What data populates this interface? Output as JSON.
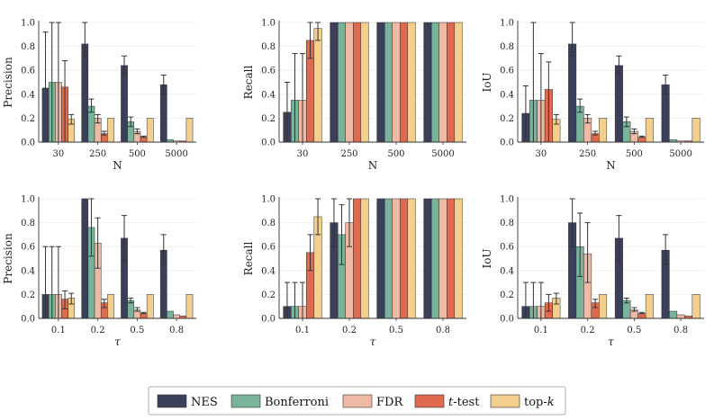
{
  "colors": {
    "NES": "#3c3f5a",
    "Bonferroni": "#78b39a",
    "FDR": "#f0b9a4",
    "t-test": "#df6a4e",
    "top-k": "#f2cf8c",
    "grid": "#eeeeee",
    "axis": "#333333",
    "errorbar": "#333333"
  },
  "legend": {
    "items": [
      {
        "name": "NES",
        "label": "NES"
      },
      {
        "name": "Bonferroni",
        "label": "Bonferroni"
      },
      {
        "name": "FDR",
        "label": "FDR"
      },
      {
        "name": "t-test",
        "label": "t-test",
        "italic_part": "t",
        "rest": "-test"
      },
      {
        "name": "top-k",
        "label": "top-k",
        "prefix": "top-",
        "italic_part": "k"
      }
    ]
  },
  "chart_data": [
    {
      "type": "bar",
      "id": "precision-N",
      "ylabel": "Precision",
      "xlabel": "N",
      "categories": [
        "30",
        "250",
        "500",
        "5000"
      ],
      "ylim": [
        0,
        1
      ],
      "yticks": [
        "0.0",
        "0.2",
        "0.4",
        "0.6",
        "0.8",
        "1.0"
      ],
      "series": [
        {
          "name": "NES",
          "values": [
            0.45,
            0.82,
            0.64,
            0.48
          ],
          "err_low": [
            0.45,
            0.72,
            0.57,
            0.4
          ],
          "err_high": [
            0.92,
            1.0,
            0.72,
            0.56
          ]
        },
        {
          "name": "Bonferroni",
          "values": [
            0.5,
            0.3,
            0.17,
            0.02
          ],
          "err_low": [
            0.0,
            0.25,
            0.13,
            0.02
          ],
          "err_high": [
            1.0,
            0.36,
            0.21,
            0.02
          ]
        },
        {
          "name": "FDR",
          "values": [
            0.5,
            0.2,
            0.09,
            0.01
          ],
          "err_low": [
            0.0,
            0.16,
            0.07,
            0.01
          ],
          "err_high": [
            1.0,
            0.23,
            0.11,
            0.01
          ]
        },
        {
          "name": "t-test",
          "values": [
            0.46,
            0.07,
            0.04,
            0.01
          ],
          "err_low": [
            0.0,
            0.06,
            0.04,
            0.01
          ],
          "err_high": [
            0.68,
            0.09,
            0.05,
            0.01
          ]
        },
        {
          "name": "top-k",
          "values": [
            0.19,
            0.2,
            0.2,
            0.2
          ],
          "err_low": [
            0.15,
            0.2,
            0.2,
            0.2
          ],
          "err_high": [
            0.23,
            0.2,
            0.2,
            0.2
          ]
        }
      ]
    },
    {
      "type": "bar",
      "id": "recall-N",
      "ylabel": "Recall",
      "xlabel": "N",
      "categories": [
        "30",
        "250",
        "500",
        "5000"
      ],
      "ylim": [
        0,
        1
      ],
      "yticks": [
        "0.0",
        "0.2",
        "0.4",
        "0.6",
        "0.8",
        "1.0"
      ],
      "series": [
        {
          "name": "NES",
          "values": [
            0.25,
            1.0,
            1.0,
            1.0
          ],
          "err_low": [
            0.0,
            1.0,
            1.0,
            1.0
          ],
          "err_high": [
            0.5,
            1.0,
            1.0,
            1.0
          ]
        },
        {
          "name": "Bonferroni",
          "values": [
            0.35,
            1.0,
            1.0,
            1.0
          ],
          "err_low": [
            0.0,
            1.0,
            1.0,
            1.0
          ],
          "err_high": [
            0.74,
            1.0,
            1.0,
            1.0
          ]
        },
        {
          "name": "FDR",
          "values": [
            0.35,
            1.0,
            1.0,
            1.0
          ],
          "err_low": [
            0.0,
            1.0,
            1.0,
            1.0
          ],
          "err_high": [
            0.74,
            1.0,
            1.0,
            1.0
          ]
        },
        {
          "name": "t-test",
          "values": [
            0.85,
            1.0,
            1.0,
            1.0
          ],
          "err_low": [
            0.7,
            1.0,
            1.0,
            1.0
          ],
          "err_high": [
            1.0,
            1.0,
            1.0,
            1.0
          ]
        },
        {
          "name": "top-k",
          "values": [
            0.95,
            1.0,
            1.0,
            1.0
          ],
          "err_low": [
            0.85,
            1.0,
            1.0,
            1.0
          ],
          "err_high": [
            1.0,
            1.0,
            1.0,
            1.0
          ]
        }
      ]
    },
    {
      "type": "bar",
      "id": "iou-N",
      "ylabel": "IoU",
      "xlabel": "N",
      "categories": [
        "30",
        "250",
        "500",
        "5000"
      ],
      "ylim": [
        0,
        1
      ],
      "yticks": [
        "0.0",
        "0.2",
        "0.4",
        "0.6",
        "0.8",
        "1.0"
      ],
      "series": [
        {
          "name": "NES",
          "values": [
            0.24,
            0.82,
            0.64,
            0.48
          ],
          "err_low": [
            0.0,
            0.72,
            0.57,
            0.4
          ],
          "err_high": [
            0.47,
            1.0,
            0.72,
            0.56
          ]
        },
        {
          "name": "Bonferroni",
          "values": [
            0.35,
            0.3,
            0.17,
            0.02
          ],
          "err_low": [
            0.0,
            0.25,
            0.13,
            0.02
          ],
          "err_high": [
            1.0,
            0.36,
            0.21,
            0.02
          ]
        },
        {
          "name": "FDR",
          "values": [
            0.35,
            0.2,
            0.09,
            0.01
          ],
          "err_low": [
            0.0,
            0.16,
            0.07,
            0.01
          ],
          "err_high": [
            0.74,
            0.23,
            0.11,
            0.01
          ]
        },
        {
          "name": "t-test",
          "values": [
            0.44,
            0.07,
            0.04,
            0.01
          ],
          "err_low": [
            0.0,
            0.06,
            0.04,
            0.01
          ],
          "err_high": [
            0.67,
            0.09,
            0.05,
            0.01
          ]
        },
        {
          "name": "top-k",
          "values": [
            0.19,
            0.2,
            0.2,
            0.2
          ],
          "err_low": [
            0.15,
            0.2,
            0.2,
            0.2
          ],
          "err_high": [
            0.23,
            0.2,
            0.2,
            0.2
          ]
        }
      ]
    },
    {
      "type": "bar",
      "id": "precision-tau",
      "ylabel": "Precision",
      "xlabel": "τ",
      "categories": [
        "0.1",
        "0.2",
        "0.5",
        "0.8"
      ],
      "ylim": [
        0,
        1
      ],
      "yticks": [
        "0.0",
        "0.2",
        "0.4",
        "0.6",
        "0.8",
        "1.0"
      ],
      "series": [
        {
          "name": "NES",
          "values": [
            0.2,
            1.0,
            0.67,
            0.57
          ],
          "err_low": [
            0.0,
            1.0,
            0.48,
            0.45
          ],
          "err_high": [
            0.6,
            1.0,
            0.86,
            0.7
          ]
        },
        {
          "name": "Bonferroni",
          "values": [
            0.2,
            0.76,
            0.15,
            0.06
          ],
          "err_low": [
            0.0,
            0.52,
            0.13,
            0.06
          ],
          "err_high": [
            0.6,
            1.0,
            0.17,
            0.06
          ]
        },
        {
          "name": "FDR",
          "values": [
            0.2,
            0.63,
            0.07,
            0.03
          ],
          "err_low": [
            0.0,
            0.42,
            0.06,
            0.03
          ],
          "err_high": [
            0.6,
            0.84,
            0.09,
            0.03
          ]
        },
        {
          "name": "t-test",
          "values": [
            0.16,
            0.13,
            0.04,
            0.02
          ],
          "err_low": [
            0.08,
            0.09,
            0.04,
            0.02
          ],
          "err_high": [
            0.23,
            0.16,
            0.05,
            0.02
          ]
        },
        {
          "name": "top-k",
          "values": [
            0.17,
            0.2,
            0.2,
            0.2
          ],
          "err_low": [
            0.12,
            0.2,
            0.2,
            0.2
          ],
          "err_high": [
            0.21,
            0.2,
            0.2,
            0.2
          ]
        }
      ]
    },
    {
      "type": "bar",
      "id": "recall-tau",
      "ylabel": "Recall",
      "xlabel": "τ",
      "categories": [
        "0.1",
        "0.2",
        "0.5",
        "0.8"
      ],
      "ylim": [
        0,
        1
      ],
      "yticks": [
        "0.0",
        "0.2",
        "0.4",
        "0.6",
        "0.8",
        "1.0"
      ],
      "series": [
        {
          "name": "NES",
          "values": [
            0.1,
            0.8,
            1.0,
            1.0
          ],
          "err_low": [
            0.0,
            0.6,
            1.0,
            1.0
          ],
          "err_high": [
            0.3,
            1.0,
            1.0,
            1.0
          ]
        },
        {
          "name": "Bonferroni",
          "values": [
            0.1,
            0.7,
            1.0,
            1.0
          ],
          "err_low": [
            0.0,
            0.45,
            1.0,
            1.0
          ],
          "err_high": [
            0.3,
            0.95,
            1.0,
            1.0
          ]
        },
        {
          "name": "FDR",
          "values": [
            0.1,
            0.8,
            1.0,
            1.0
          ],
          "err_low": [
            0.0,
            0.6,
            1.0,
            1.0
          ],
          "err_high": [
            0.3,
            1.0,
            1.0,
            1.0
          ]
        },
        {
          "name": "t-test",
          "values": [
            0.55,
            1.0,
            1.0,
            1.0
          ],
          "err_low": [
            0.4,
            1.0,
            1.0,
            1.0
          ],
          "err_high": [
            0.7,
            1.0,
            1.0,
            1.0
          ]
        },
        {
          "name": "top-k",
          "values": [
            0.85,
            1.0,
            1.0,
            1.0
          ],
          "err_low": [
            0.7,
            1.0,
            1.0,
            1.0
          ],
          "err_high": [
            1.0,
            1.0,
            1.0,
            1.0
          ]
        }
      ]
    },
    {
      "type": "bar",
      "id": "iou-tau",
      "ylabel": "IoU",
      "xlabel": "τ",
      "categories": [
        "0.1",
        "0.2",
        "0.5",
        "0.8"
      ],
      "ylim": [
        0,
        1
      ],
      "yticks": [
        "0.0",
        "0.2",
        "0.4",
        "0.6",
        "0.8",
        "1.0"
      ],
      "series": [
        {
          "name": "NES",
          "values": [
            0.1,
            0.8,
            0.67,
            0.57
          ],
          "err_low": [
            0.0,
            0.6,
            0.48,
            0.45
          ],
          "err_high": [
            0.3,
            1.0,
            0.86,
            0.7
          ]
        },
        {
          "name": "Bonferroni",
          "values": [
            0.1,
            0.6,
            0.15,
            0.06
          ],
          "err_low": [
            0.0,
            0.35,
            0.13,
            0.06
          ],
          "err_high": [
            0.3,
            0.88,
            0.17,
            0.06
          ]
        },
        {
          "name": "FDR",
          "values": [
            0.1,
            0.54,
            0.07,
            0.03
          ],
          "err_low": [
            0.0,
            0.3,
            0.06,
            0.03
          ],
          "err_high": [
            0.3,
            0.8,
            0.09,
            0.03
          ]
        },
        {
          "name": "t-test",
          "values": [
            0.13,
            0.13,
            0.04,
            0.02
          ],
          "err_low": [
            0.06,
            0.09,
            0.04,
            0.02
          ],
          "err_high": [
            0.2,
            0.16,
            0.05,
            0.02
          ]
        },
        {
          "name": "top-k",
          "values": [
            0.17,
            0.2,
            0.2,
            0.2
          ],
          "err_low": [
            0.12,
            0.2,
            0.2,
            0.2
          ],
          "err_high": [
            0.21,
            0.2,
            0.2,
            0.2
          ]
        }
      ]
    }
  ]
}
